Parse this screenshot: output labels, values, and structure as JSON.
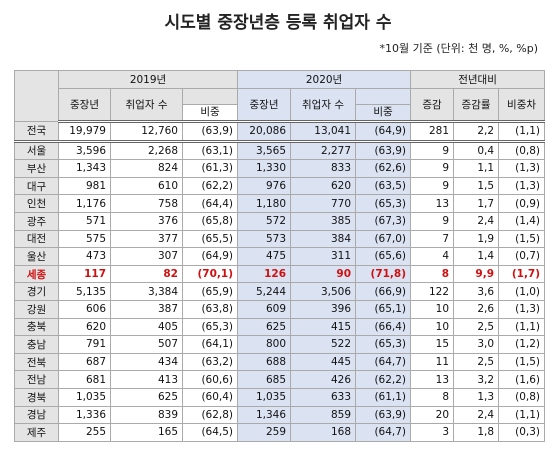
{
  "title": "시도별 중장년층 등록 취업자 수",
  "note": "*10월 기준 (단위: 천 명, %, %p)",
  "table": {
    "groups": [
      "2019년",
      "2020년",
      "전년대비"
    ],
    "columns": [
      "중장년",
      "취업자 수",
      "비중",
      "중장년",
      "취업자 수",
      "비중",
      "증감",
      "증감률",
      "비중차"
    ],
    "rows": [
      [
        "전국",
        "19,979",
        "12,760",
        "(63,9)",
        "20,086",
        "13,041",
        "(64,9)",
        "281",
        "2,2",
        "(1,1)"
      ],
      [
        "서울",
        "3,596",
        "2,268",
        "(63,1)",
        "3,565",
        "2,277",
        "(63,9)",
        "9",
        "0,4",
        "(0,8)"
      ],
      [
        "부산",
        "1,343",
        "824",
        "(61,3)",
        "1,330",
        "833",
        "(62,6)",
        "9",
        "1,1",
        "(1,3)"
      ],
      [
        "대구",
        "981",
        "610",
        "(62,2)",
        "976",
        "620",
        "(63,5)",
        "9",
        "1,5",
        "(1,3)"
      ],
      [
        "인천",
        "1,176",
        "758",
        "(64,4)",
        "1,180",
        "770",
        "(65,3)",
        "13",
        "1,7",
        "(0,9)"
      ],
      [
        "광주",
        "571",
        "376",
        "(65,8)",
        "572",
        "385",
        "(67,3)",
        "9",
        "2,4",
        "(1,4)"
      ],
      [
        "대전",
        "575",
        "377",
        "(65,5)",
        "573",
        "384",
        "(67,0)",
        "7",
        "1,9",
        "(1,5)"
      ],
      [
        "울산",
        "473",
        "307",
        "(64,9)",
        "475",
        "311",
        "(65,6)",
        "4",
        "1,4",
        "(0,7)"
      ],
      [
        "세종",
        "117",
        "82",
        "(70,1)",
        "126",
        "90",
        "(71,8)",
        "8",
        "9,9",
        "(1,7)"
      ],
      [
        "경기",
        "5,135",
        "3,384",
        "(65,9)",
        "5,244",
        "3,506",
        "(66,9)",
        "122",
        "3,6",
        "(1,0)"
      ],
      [
        "강원",
        "606",
        "387",
        "(63,8)",
        "609",
        "396",
        "(65,1)",
        "10",
        "2,6",
        "(1,3)"
      ],
      [
        "충북",
        "620",
        "405",
        "(65,3)",
        "625",
        "415",
        "(66,4)",
        "10",
        "2,5",
        "(1,1)"
      ],
      [
        "충남",
        "791",
        "507",
        "(64,1)",
        "800",
        "522",
        "(65,3)",
        "15",
        "3,0",
        "(1,2)"
      ],
      [
        "전북",
        "687",
        "434",
        "(63,2)",
        "688",
        "445",
        "(64,7)",
        "11",
        "2,5",
        "(1,5)"
      ],
      [
        "전남",
        "681",
        "413",
        "(60,6)",
        "685",
        "426",
        "(62,2)",
        "13",
        "3,2",
        "(1,6)"
      ],
      [
        "경북",
        "1,035",
        "625",
        "(60,4)",
        "1,035",
        "633",
        "(61,1)",
        "8",
        "1,3",
        "(0,8)"
      ],
      [
        "경남",
        "1,336",
        "839",
        "(62,8)",
        "1,346",
        "859",
        "(63,9)",
        "20",
        "2,4",
        "(1,1)"
      ],
      [
        "제주",
        "255",
        "165",
        "(64,5)",
        "259",
        "168",
        "(64,7)",
        "3",
        "1,8",
        "(0,3)"
      ]
    ]
  }
}
